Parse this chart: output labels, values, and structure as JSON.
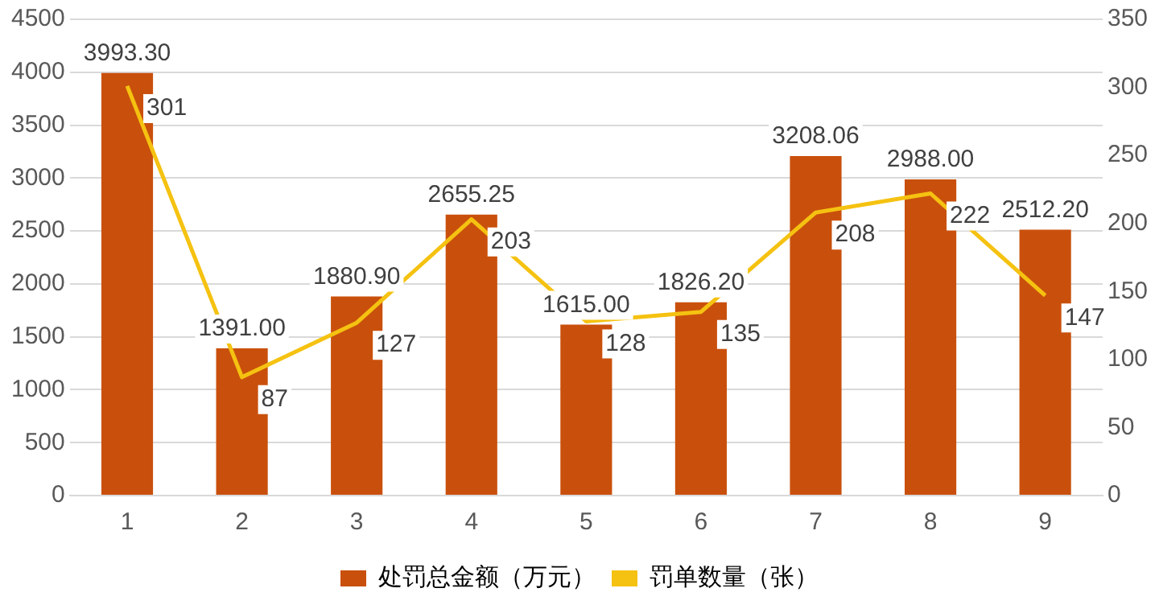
{
  "chart_data": {
    "type": "bar",
    "categories": [
      "1",
      "2",
      "3",
      "4",
      "5",
      "6",
      "7",
      "8",
      "9"
    ],
    "series": [
      {
        "name": "处罚总金额（万元）",
        "color": "#c9500c",
        "values": [
          3993.3,
          1391.0,
          1880.9,
          2655.25,
          1615.0,
          1826.2,
          3208.06,
          2988.0,
          2512.2
        ],
        "value_labels": [
          "3993.30",
          "1391.00",
          "1880.90",
          "2655.25",
          "1615.00",
          "1826.20",
          "3208.06",
          "2988.00",
          "2512.20"
        ]
      },
      {
        "name": "罚单数量（张）",
        "type": "line",
        "axis": "y2",
        "color": "#f5c211",
        "values": [
          301,
          87,
          127,
          203,
          128,
          135,
          208,
          222,
          147
        ],
        "value_labels": [
          "301",
          "87",
          "127",
          "203",
          "128",
          "135",
          "208",
          "222",
          "147"
        ]
      }
    ],
    "ylim": [
      0,
      4500
    ],
    "yticks": [
      0,
      500,
      1000,
      1500,
      2000,
      2500,
      3000,
      3500,
      4000,
      4500
    ],
    "y2lim": [
      0,
      350
    ],
    "y2ticks": [
      0,
      50,
      100,
      150,
      200,
      250,
      300,
      350
    ],
    "grid": "y",
    "legend": "bottom",
    "marker": "none"
  }
}
